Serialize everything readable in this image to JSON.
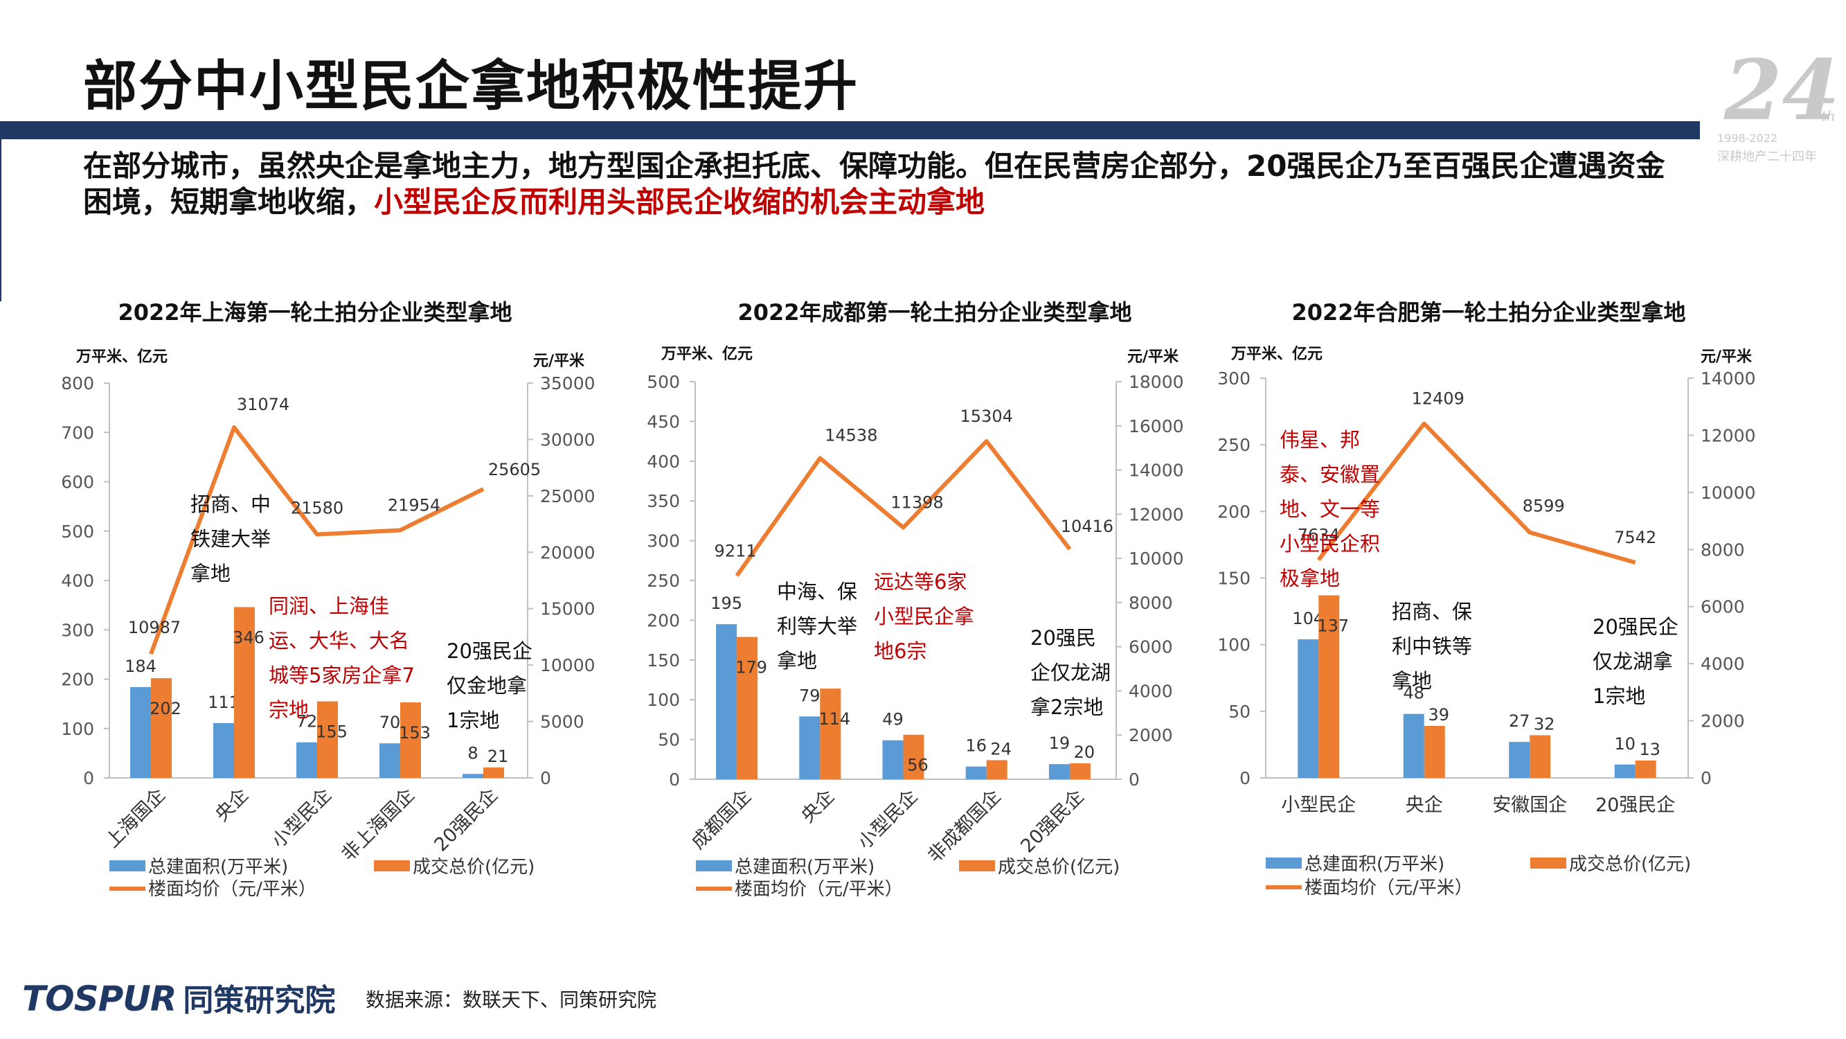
{
  "page": {
    "title": "部分中小型民企拿地积极性提升",
    "summary_normal": "在部分城市，虽然央企是拿地主力，地方型国企承担托底、保障功能。但在民营房企部分，20强民企乃至百强民企遭遇资金困境，短期拿地收缩，",
    "summary_highlight": "小型民企反而利用头部民企收缩的机会主动拿地",
    "anniversary": {
      "number": "24",
      "suffix": "th",
      "years": "1998-2022",
      "caption": "深耕地产二十四年"
    },
    "footer": {
      "logo_en": "TOSPUR",
      "logo_cn": "同策研究院",
      "source": "数据来源：数联天下、同策研究院"
    }
  },
  "colors": {
    "area": "#5b9bd5",
    "price": "#ed7d31",
    "title_bar": "#1f3864",
    "annotation_red": "#c00000",
    "annotation_black": "#111111"
  },
  "chart_data": [
    {
      "type": "bar",
      "title": "2022年上海第一轮土拍分企业类型拿地",
      "ylabel_left": "万平米、亿元",
      "ylabel_right": "元/平米",
      "ylim_left": [
        0,
        800
      ],
      "yticks_left": [
        0,
        100,
        200,
        300,
        400,
        500,
        600,
        700,
        800
      ],
      "ylim_right": [
        0,
        35000
      ],
      "yticks_right": [
        0,
        5000,
        10000,
        15000,
        20000,
        25000,
        30000,
        35000
      ],
      "categories": [
        "上海国企",
        "央企",
        "小型民企",
        "非上海国企",
        "20强民企"
      ],
      "category_labels_rotated": true,
      "series": [
        {
          "name": "总建面积(万平米)",
          "kind": "bar",
          "axis": "left",
          "color": "#5b9bd5",
          "values": [
            184,
            111,
            72,
            70,
            8
          ]
        },
        {
          "name": "成交总价(亿元)",
          "kind": "bar",
          "axis": "left",
          "color": "#ed7d31",
          "values": [
            202,
            346,
            155,
            153,
            21
          ]
        },
        {
          "name": "楼面均价（元/平米）",
          "kind": "line",
          "axis": "right",
          "color": "#ed7d31",
          "values": [
            10987,
            31074,
            21580,
            21954,
            25605
          ]
        }
      ],
      "annotations": [
        {
          "text": [
            "招商、中",
            "铁建大举",
            "拿地"
          ],
          "color": "#111111"
        },
        {
          "text": [
            "同润、上海佳",
            "运、大华、大名",
            "城等5家房企拿7",
            "宗地"
          ],
          "color": "#c00000"
        },
        {
          "text": [
            "20强民企",
            "仅金地拿",
            "1宗地"
          ],
          "color": "#111111"
        }
      ],
      "legend": "bottom"
    },
    {
      "type": "bar",
      "title": "2022年成都第一轮土拍分企业类型拿地",
      "ylabel_left": "万平米、亿元",
      "ylabel_right": "元/平米",
      "ylim_left": [
        0,
        500
      ],
      "yticks_left": [
        0,
        50,
        100,
        150,
        200,
        250,
        300,
        350,
        400,
        450,
        500
      ],
      "ylim_right": [
        0,
        18000
      ],
      "yticks_right": [
        0,
        2000,
        4000,
        6000,
        8000,
        10000,
        12000,
        14000,
        16000,
        18000
      ],
      "categories": [
        "成都国企",
        "央企",
        "小型民企",
        "非成都国企",
        "20强民企"
      ],
      "category_labels_rotated": true,
      "series": [
        {
          "name": "总建面积(万平米)",
          "kind": "bar",
          "axis": "left",
          "color": "#5b9bd5",
          "values": [
            195,
            79,
            49,
            16,
            19
          ]
        },
        {
          "name": "成交总价(亿元)",
          "kind": "bar",
          "axis": "left",
          "color": "#ed7d31",
          "values": [
            179,
            114,
            56,
            24,
            20
          ]
        },
        {
          "name": "楼面均价（元/平米）",
          "kind": "line",
          "axis": "right",
          "color": "#ed7d31",
          "values": [
            9211,
            14538,
            11398,
            15304,
            10416
          ]
        }
      ],
      "annotations": [
        {
          "text": [
            "中海、保",
            "利等大举",
            "拿地"
          ],
          "color": "#111111"
        },
        {
          "text": [
            "远达等6家",
            "小型民企拿",
            "地6宗"
          ],
          "color": "#c00000"
        },
        {
          "text": [
            "20强民",
            "企仅龙湖",
            "拿2宗地"
          ],
          "color": "#111111"
        }
      ],
      "legend": "bottom"
    },
    {
      "type": "bar",
      "title": "2022年合肥第一轮土拍分企业类型拿地",
      "ylabel_left": "万平米、亿元",
      "ylabel_right": "元/平米",
      "ylim_left": [
        0,
        300
      ],
      "yticks_left": [
        0,
        50,
        100,
        150,
        200,
        250,
        300
      ],
      "ylim_right": [
        0,
        14000
      ],
      "yticks_right": [
        0,
        2000,
        4000,
        6000,
        8000,
        10000,
        12000,
        14000
      ],
      "categories": [
        "小型民企",
        "央企",
        "安徽国企",
        "20强民企"
      ],
      "category_labels_rotated": false,
      "series": [
        {
          "name": "总建面积(万平米)",
          "kind": "bar",
          "axis": "left",
          "color": "#5b9bd5",
          "values": [
            104,
            48,
            27,
            10
          ]
        },
        {
          "name": "成交总价(亿元)",
          "kind": "bar",
          "axis": "left",
          "color": "#ed7d31",
          "values": [
            137,
            39,
            32,
            13
          ]
        },
        {
          "name": "楼面均价（元/平米）",
          "kind": "line",
          "axis": "right",
          "color": "#ed7d31",
          "values": [
            7634,
            12409,
            8599,
            7542
          ]
        }
      ],
      "annotations": [
        {
          "text": [
            "伟星、邦",
            "泰、安徽置",
            "地、文一等",
            "小型民企积",
            "极拿地"
          ],
          "color": "#c00000"
        },
        {
          "text": [
            "招商、保",
            "利中铁等",
            "拿地"
          ],
          "color": "#111111"
        },
        {
          "text": [
            "20强民企",
            "仅龙湖拿",
            "1宗地"
          ],
          "color": "#111111"
        }
      ],
      "legend": "bottom"
    }
  ]
}
